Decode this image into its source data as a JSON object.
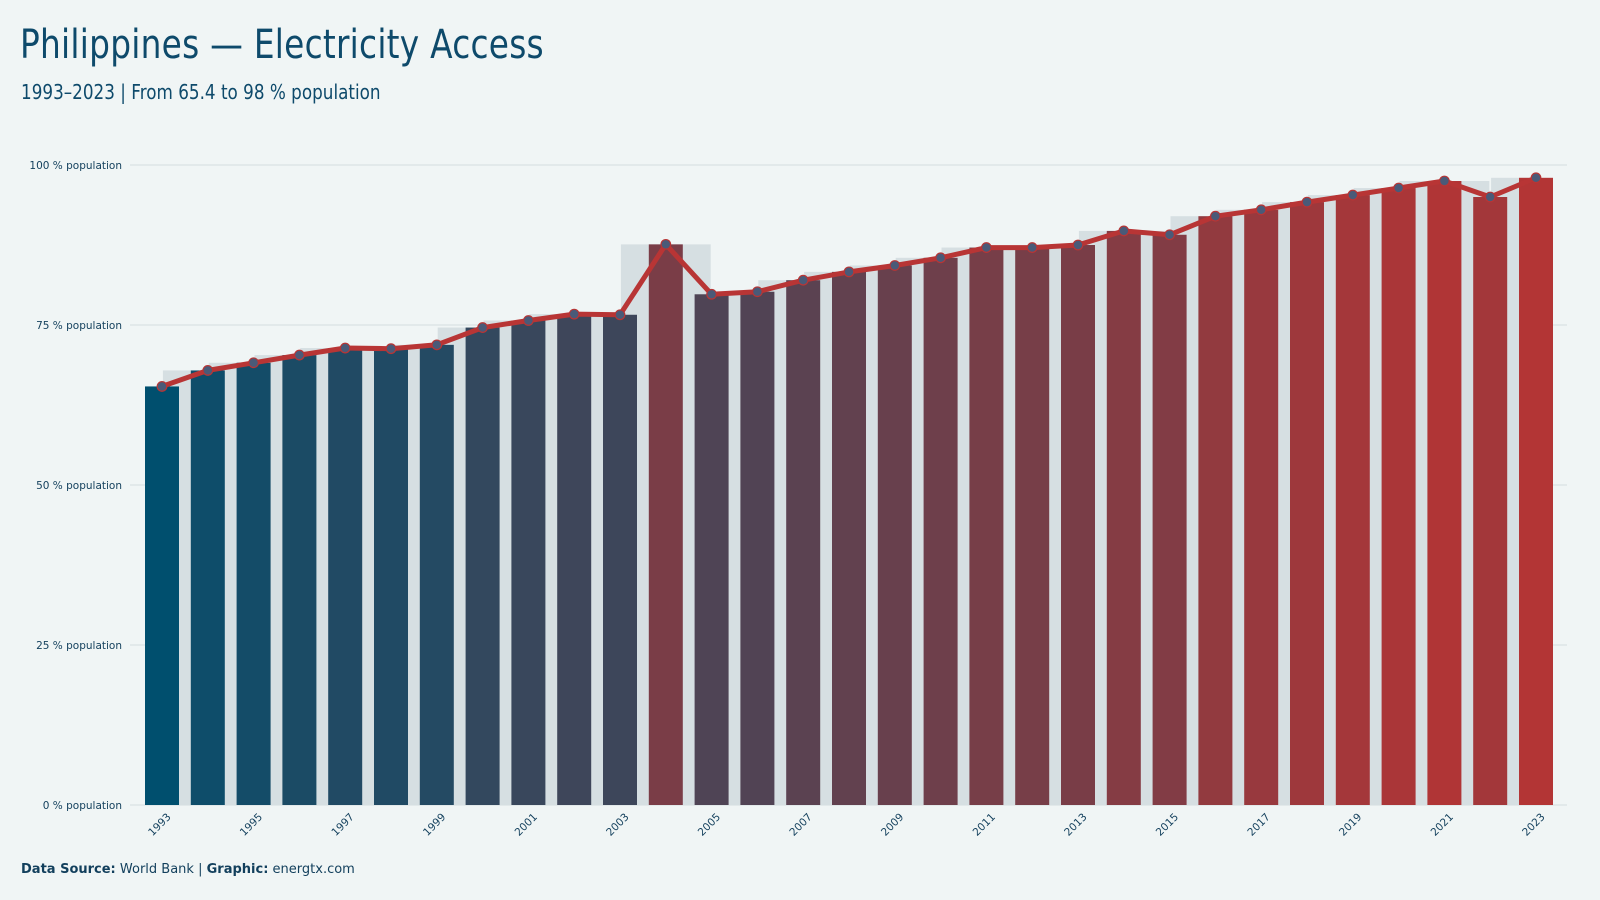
{
  "header": {
    "title": "Philippines — Electricity Access",
    "subtitle": "1993–2023 | From 65.4 to 98 % population"
  },
  "footer": {
    "source_label": "Data Source:",
    "source_value": "World Bank",
    "separator": "|",
    "graphic_label": "Graphic:",
    "graphic_value": "energtx.com"
  },
  "colors": {
    "background": "#f0f5f5",
    "start": "#004f6e",
    "end": "#b33535",
    "line": "#b83535",
    "marker": "#4a5a78",
    "gap_bar": "#d6dfe2",
    "grid": "#d5dde0"
  },
  "chart_data": {
    "type": "bar",
    "title": "Philippines — Electricity Access",
    "subtitle": "1993–2023 | From 65.4 to 98 % population",
    "xlabel": "",
    "ylabel": "",
    "ylim": [
      0,
      100
    ],
    "y_ticks": [
      0,
      25,
      50,
      75,
      100
    ],
    "y_tick_labels": [
      "0 % population",
      "25 % population",
      "50 % population",
      "75 % population",
      "100 % population"
    ],
    "x_tick_labels": [
      "1993",
      "1995",
      "1997",
      "1999",
      "2001",
      "2003",
      "2005",
      "2007",
      "2009",
      "2011",
      "2013",
      "2015",
      "2017",
      "2019",
      "2021",
      "2023"
    ],
    "categories": [
      "1993",
      "1994",
      "1995",
      "1996",
      "1997",
      "1998",
      "1999",
      "2000",
      "2001",
      "2002",
      "2003",
      "2004",
      "2005",
      "2006",
      "2007",
      "2008",
      "2009",
      "2010",
      "2011",
      "2012",
      "2013",
      "2014",
      "2015",
      "2016",
      "2017",
      "2018",
      "2019",
      "2020",
      "2021",
      "2022",
      "2023"
    ],
    "values": [
      65.4,
      67.9,
      69.1,
      70.3,
      71.4,
      71.3,
      71.9,
      74.6,
      75.7,
      76.7,
      76.6,
      87.6,
      79.8,
      80.2,
      82.0,
      83.3,
      84.3,
      85.5,
      87.1,
      87.1,
      87.5,
      89.7,
      89.1,
      92.0,
      93.0,
      94.2,
      95.3,
      96.4,
      97.5,
      95.0,
      98.0
    ],
    "grid": true,
    "legend": "none",
    "overlay": "line with circle markers"
  }
}
